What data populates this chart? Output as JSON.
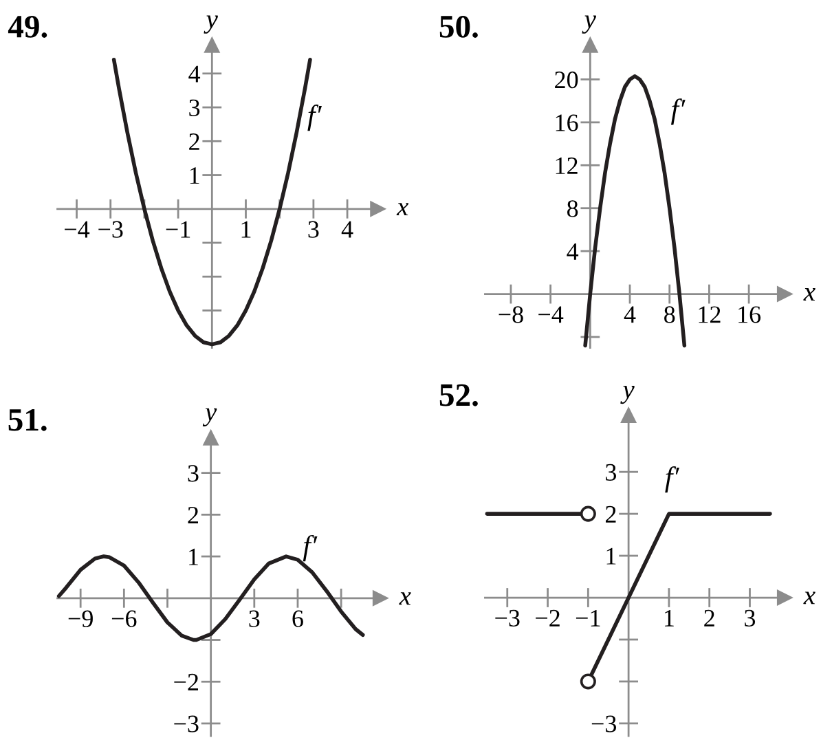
{
  "chart_data": [
    {
      "type": "line",
      "title": "49.",
      "xlabel": "x",
      "ylabel": "y",
      "xlim": [
        -4.57,
        4.9
      ],
      "ylim": [
        -4.1,
        4.84
      ],
      "xticks": [
        {
          "value": -4,
          "label": "−4"
        },
        {
          "value": -3,
          "label": "−3"
        },
        {
          "value": -2,
          "label": null
        },
        {
          "value": -1,
          "label": "−1"
        },
        1,
        {
          "value": 2,
          "label": null
        },
        3,
        4
      ],
      "yticks": [
        {
          "value": -3,
          "label": null
        },
        {
          "value": -2,
          "label": null
        },
        {
          "value": -1,
          "label": null
        },
        1,
        2,
        3,
        4
      ],
      "series": [
        {
          "color": "#231f20",
          "x": [
            -2.9,
            -2.75,
            -2.5,
            -2.25,
            -2,
            -1.75,
            -1.5,
            -1.25,
            -1,
            -0.75,
            -0.5,
            -0.25,
            0,
            0.25,
            0.5,
            0.75,
            1,
            1.25,
            1.5,
            1.75,
            2,
            2.25,
            2.5,
            2.75,
            2.9
          ],
          "values": [
            4.41,
            3.56,
            2.25,
            1.06,
            0,
            -0.94,
            -1.75,
            -2.44,
            -3,
            -3.44,
            -3.75,
            -3.94,
            -4,
            -3.94,
            -3.75,
            -3.44,
            -3,
            -2.44,
            -1.75,
            -0.94,
            0,
            1.06,
            2.25,
            3.56,
            4.41
          ]
        }
      ],
      "annotations": [
        "f′"
      ]
    },
    {
      "type": "line",
      "title": "50.",
      "xlabel": "x",
      "ylabel": "y",
      "xlim": [
        -10.6,
        19.6
      ],
      "ylim": [
        -5,
        23.2
      ],
      "xticks": [
        {
          "value": -8,
          "label": "−8"
        },
        {
          "value": -4,
          "label": "−4"
        },
        4,
        8,
        12,
        16
      ],
      "yticks": [
        {
          "value": -4,
          "label": null
        },
        4,
        8,
        12,
        16,
        20
      ],
      "series": [
        {
          "color": "#231f20",
          "x": [
            -0.5,
            0,
            0.5,
            1,
            1.5,
            2,
            2.5,
            3,
            3.5,
            4,
            4.5,
            5,
            5.5,
            6,
            6.5,
            7,
            7.5,
            8,
            8.5,
            9,
            9.5
          ],
          "values": [
            -4.8,
            0,
            4.3,
            8,
            11.3,
            14,
            16.3,
            18,
            19.3,
            20,
            20.3,
            20,
            19.3,
            18,
            16.3,
            14,
            11.3,
            8,
            4.3,
            0,
            -4.8
          ]
        }
      ],
      "annotations": [
        "f′"
      ]
    },
    {
      "type": "line",
      "title": "51.",
      "xlabel": "x",
      "ylabel": "y",
      "xlim": [
        -10.6,
        11.7
      ],
      "ylim": [
        -3.3,
        3.84
      ],
      "xticks": [
        {
          "value": -9,
          "label": "−9"
        },
        {
          "value": -6,
          "label": "−6"
        },
        {
          "value": -3,
          "label": null
        },
        3,
        6,
        {
          "value": 9,
          "label": null
        }
      ],
      "yticks": [
        {
          "value": -3,
          "label": "−3"
        },
        {
          "value": -2,
          "label": "−2"
        },
        {
          "value": -1,
          "label": null
        },
        1,
        2,
        3
      ],
      "series": [
        {
          "color": "#231f20",
          "x": [
            -10.5,
            -10,
            -9,
            -8,
            -7.4,
            -7,
            -6,
            -5,
            -4,
            -3,
            -2,
            -1.2,
            -1,
            0,
            1,
            2,
            3,
            4,
            5.2,
            6,
            7,
            8,
            9,
            10,
            10.5
          ],
          "values": [
            0.05,
            0.25,
            0.68,
            0.95,
            1,
            0.98,
            0.78,
            0.38,
            -0.11,
            -0.58,
            -0.9,
            -1,
            -1,
            -0.86,
            -0.5,
            -0.03,
            0.45,
            0.83,
            1,
            0.92,
            0.62,
            0.17,
            -0.32,
            -0.74,
            -0.88
          ]
        }
      ],
      "annotations": [
        "f′"
      ]
    },
    {
      "type": "line",
      "title": "52.",
      "xlabel": "x",
      "ylabel": "y",
      "xlim": [
        -3.55,
        3.86
      ],
      "ylim": [
        -3.3,
        4.35
      ],
      "xticks": [
        {
          "value": -3,
          "label": "−3"
        },
        {
          "value": -2,
          "label": "−2"
        },
        {
          "value": -1,
          "label": "−1"
        },
        1,
        2,
        3
      ],
      "yticks": [
        {
          "value": -3,
          "label": "−3"
        },
        {
          "value": -2,
          "label": null
        },
        {
          "value": -1,
          "label": null
        },
        1,
        2,
        3
      ],
      "series": [
        {
          "color": "#231f20",
          "x": [
            -3.5,
            -1
          ],
          "values": [
            2,
            2
          ]
        },
        {
          "color": "#231f20",
          "x": [
            -1,
            1,
            3.5
          ],
          "values": [
            -2,
            2,
            2
          ]
        },
        {
          "type": "scatter",
          "color": "#231f20",
          "marker": "circle",
          "x": [
            -1,
            -1
          ],
          "values": [
            2,
            -2
          ]
        }
      ],
      "annotations": [
        "f′"
      ]
    }
  ]
}
